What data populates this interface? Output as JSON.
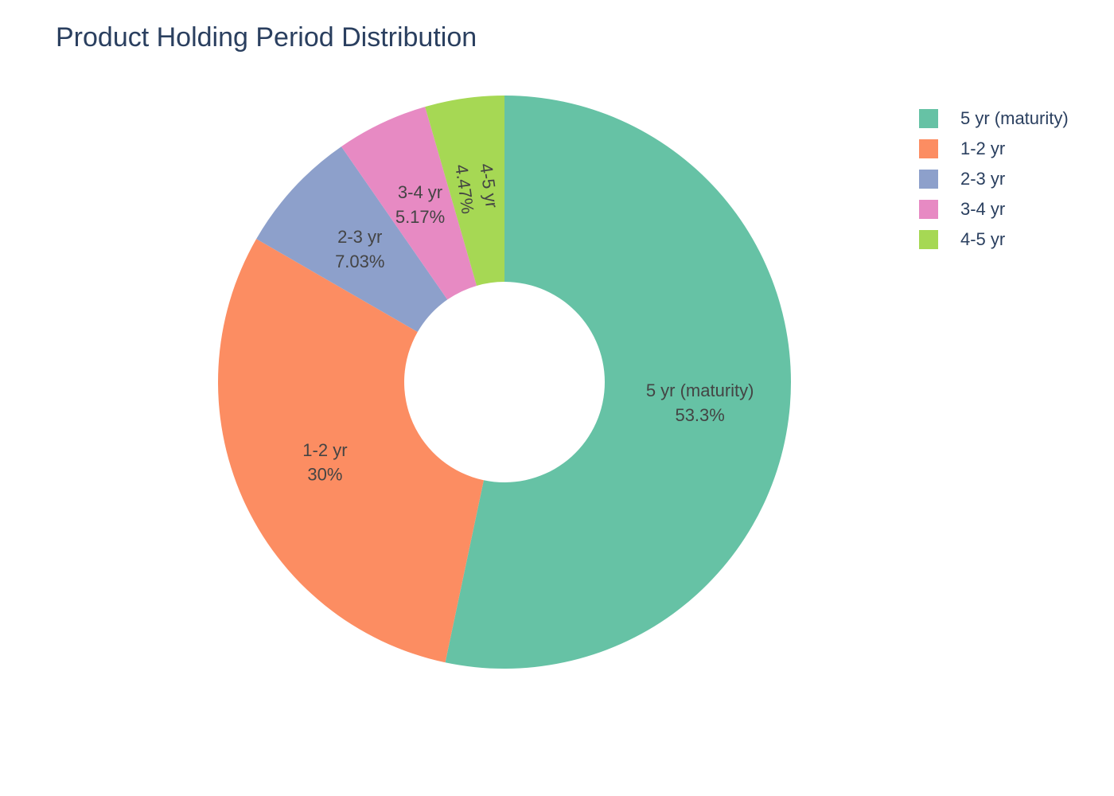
{
  "chart_data": {
    "type": "pie",
    "hole": true,
    "title": "Product Holding Period Distribution",
    "legend_position": "top-right",
    "slices": [
      {
        "label": "5 yr (maturity)",
        "value": 53.3,
        "percent_text": "53.3%",
        "color": "#66c2a5"
      },
      {
        "label": "1-2 yr",
        "value": 30.0,
        "percent_text": "30%",
        "color": "#fc8d62"
      },
      {
        "label": "2-3 yr",
        "value": 7.03,
        "percent_text": "7.03%",
        "color": "#8da0cb"
      },
      {
        "label": "3-4 yr",
        "value": 5.17,
        "percent_text": "5.17%",
        "color": "#e78ac3"
      },
      {
        "label": "4-5 yr",
        "value": 4.47,
        "percent_text": "4.47%",
        "color": "#a6d854"
      }
    ]
  }
}
